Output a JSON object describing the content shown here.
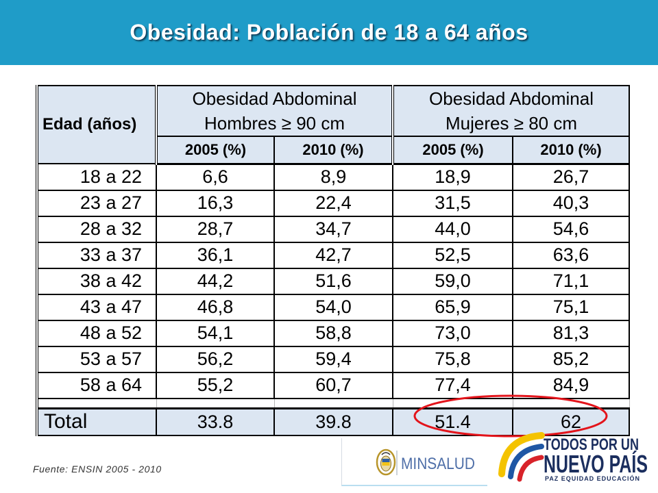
{
  "header": {
    "title": "Obesidad: Población de 18 a 64 años"
  },
  "table": {
    "age_header": "Edad (años)",
    "groups": [
      {
        "title": "Obesidad Abdominal",
        "subtitle": "Hombres ≥ 90 cm"
      },
      {
        "title": "Obesidad Abdominal",
        "subtitle": "Mujeres ≥ 80 cm"
      }
    ],
    "year_headers": [
      "2005 (%)",
      "2010 (%)",
      "2005 (%)",
      "2010 (%)"
    ],
    "rows": [
      {
        "age": "18 a 22",
        "values": [
          "6,6",
          "8,9",
          "18,9",
          "26,7"
        ]
      },
      {
        "age": "23 a 27",
        "values": [
          "16,3",
          "22,4",
          "31,5",
          "40,3"
        ]
      },
      {
        "age": "28 a 32",
        "values": [
          "28,7",
          "34,7",
          "44,0",
          "54,6"
        ]
      },
      {
        "age": "33 a 37",
        "values": [
          "36,1",
          "42,7",
          "52,5",
          "63,6"
        ]
      },
      {
        "age": "38 a 42",
        "values": [
          "44,2",
          "51,6",
          "59,0",
          "71,1"
        ]
      },
      {
        "age": "43 a 47",
        "values": [
          "46,8",
          "54,0",
          "65,9",
          "75,1"
        ]
      },
      {
        "age": "48 a 52",
        "values": [
          "54,1",
          "58,8",
          "73,0",
          "81,3"
        ]
      },
      {
        "age": "53 a 57",
        "values": [
          "56,2",
          "59,4",
          "75,8",
          "85,2"
        ]
      },
      {
        "age": "58 a 64",
        "values": [
          "55,2",
          "60,7",
          "77,4",
          "84,9"
        ]
      }
    ],
    "total": {
      "label": "Total",
      "values": [
        "33.8",
        "39.8",
        "51.4",
        "62"
      ]
    }
  },
  "footer": {
    "source": "Fuente: ENSIN 2005 - 2010"
  },
  "logos": {
    "minsalud": {
      "text": "MINSALUD",
      "emblem_icon": "coat-of-arms-icon"
    },
    "campaign": {
      "line1": "TODOS POR UN",
      "line2": "NUEVO PAÍS",
      "tagline": "PAZ EQUIDAD EDUCACIÓN",
      "icon": "tricolor-swoosh-icon"
    }
  },
  "colors": {
    "title_bar": "#1f9cc8",
    "title_text": "#ffffff",
    "header_cell": "#dce6f2",
    "highlight": "#e3141b",
    "minsalud_text": "#4f6fa8",
    "campaign_navy": "#1b2e5e",
    "swoosh_yellow": "#f4c300",
    "swoosh_blue": "#1f57a5",
    "swoosh_red": "#d8232a"
  }
}
